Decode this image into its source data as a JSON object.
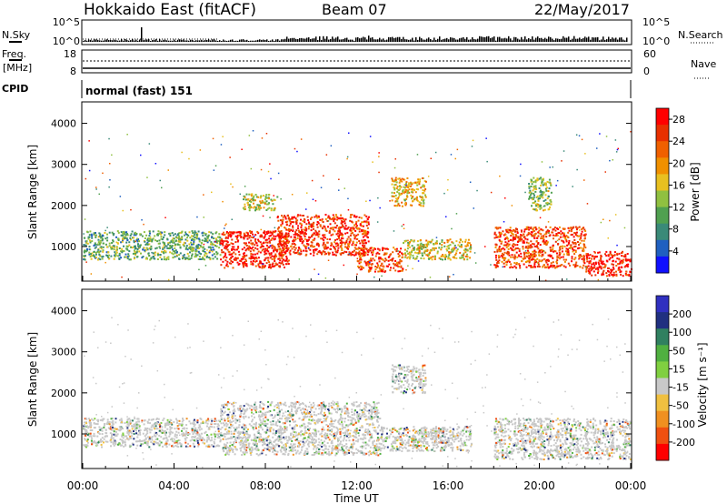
{
  "header": {
    "station": "Hokkaido East (fitACF)",
    "beam": "Beam 07",
    "date": "22/May/2017"
  },
  "top_panels": {
    "nsky_label": "N.Sky",
    "nsky_ticks": [
      "10^5",
      "10^0"
    ],
    "nsearch_label": "N.Search",
    "nsearch_ticks": [
      "10^5",
      "10^0"
    ],
    "freq_label_1": "Freq.",
    "freq_label_2": "[MHz]",
    "freq_ticks": [
      "18",
      "8"
    ],
    "nave_label": "Nave",
    "nave_ticks": [
      "60",
      "0"
    ],
    "cpid_label": "CPID",
    "cpid_value": "normal (fast) 151"
  },
  "chart_data": [
    {
      "type": "heatmap",
      "name": "power",
      "ylabel": "Slant Range [km]",
      "xlabel": "",
      "yticks": [
        "1000",
        "2000",
        "3000",
        "4000"
      ],
      "ylim": [
        180,
        4500
      ],
      "colorbar": {
        "label": "Power [dB]",
        "ticks": [
          "4",
          "8",
          "12",
          "16",
          "20",
          "24",
          "28"
        ],
        "colors": [
          "#1010ff",
          "#2060c0",
          "#3a8a78",
          "#50a050",
          "#90c040",
          "#e8c020",
          "#f09000",
          "#f06000",
          "#e83000",
          "#ff0000"
        ],
        "range": [
          0,
          30
        ]
      },
      "echo_regions": [
        {
          "t0": 0.0,
          "t1": 6.0,
          "r0": 700,
          "r1": 1400,
          "level": 0.35
        },
        {
          "t0": 6.0,
          "t1": 9.0,
          "r0": 500,
          "r1": 1400,
          "level": 0.95
        },
        {
          "t0": 8.5,
          "t1": 12.5,
          "r0": 800,
          "r1": 1800,
          "level": 0.9
        },
        {
          "t0": 12.0,
          "t1": 14.0,
          "r0": 400,
          "r1": 1000,
          "level": 0.85
        },
        {
          "t0": 14.0,
          "t1": 17.0,
          "r0": 700,
          "r1": 1200,
          "level": 0.55
        },
        {
          "t0": 18.0,
          "t1": 22.0,
          "r0": 500,
          "r1": 1500,
          "level": 0.85
        },
        {
          "t0": 22.0,
          "t1": 24.0,
          "r0": 300,
          "r1": 900,
          "level": 0.95
        },
        {
          "t0": 13.5,
          "t1": 15.0,
          "r0": 2000,
          "r1": 2700,
          "level": 0.6
        },
        {
          "t0": 7.0,
          "t1": 8.5,
          "r0": 1900,
          "r1": 2300,
          "level": 0.5
        },
        {
          "t0": 19.5,
          "t1": 20.5,
          "r0": 1900,
          "r1": 2700,
          "level": 0.4
        }
      ]
    },
    {
      "type": "heatmap",
      "name": "velocity",
      "ylabel": "Slant Range [km]",
      "xlabel": "Time UT",
      "yticks": [
        "1000",
        "2000",
        "3000",
        "4000"
      ],
      "ylim": [
        180,
        4500
      ],
      "colorbar": {
        "label": "Velocity [m s⁻¹]",
        "ticks": [
          "200",
          "100",
          "50",
          "15",
          "-15",
          "-50",
          "-100",
          "-200"
        ],
        "colors": [
          "#3030c0",
          "#203080",
          "#308060",
          "#50b040",
          "#80d040",
          "#c8c8c8",
          "#f0c040",
          "#f09020",
          "#f05010",
          "#ff0000"
        ],
        "range": [
          -250,
          250
        ]
      },
      "echo_regions": [
        {
          "t0": 0.0,
          "t1": 6.0,
          "r0": 700,
          "r1": 1400,
          "level": 0.5
        },
        {
          "t0": 6.0,
          "t1": 13.0,
          "r0": 500,
          "r1": 1800,
          "level": 0.5
        },
        {
          "t0": 13.0,
          "t1": 17.0,
          "r0": 600,
          "r1": 1200,
          "level": 0.55
        },
        {
          "t0": 18.0,
          "t1": 24.0,
          "r0": 400,
          "r1": 1400,
          "level": 0.5
        },
        {
          "t0": 13.5,
          "t1": 15.0,
          "r0": 2000,
          "r1": 2700,
          "level": 0.5
        },
        {
          "t0": 14.5,
          "t1": 16.0,
          "r0": 800,
          "r1": 1100,
          "level": 0.3
        }
      ]
    }
  ],
  "x_axis": {
    "label": "Time UT",
    "ticks": [
      "00:00",
      "04:00",
      "08:00",
      "12:00",
      "16:00",
      "20:00",
      "00:00"
    ]
  }
}
